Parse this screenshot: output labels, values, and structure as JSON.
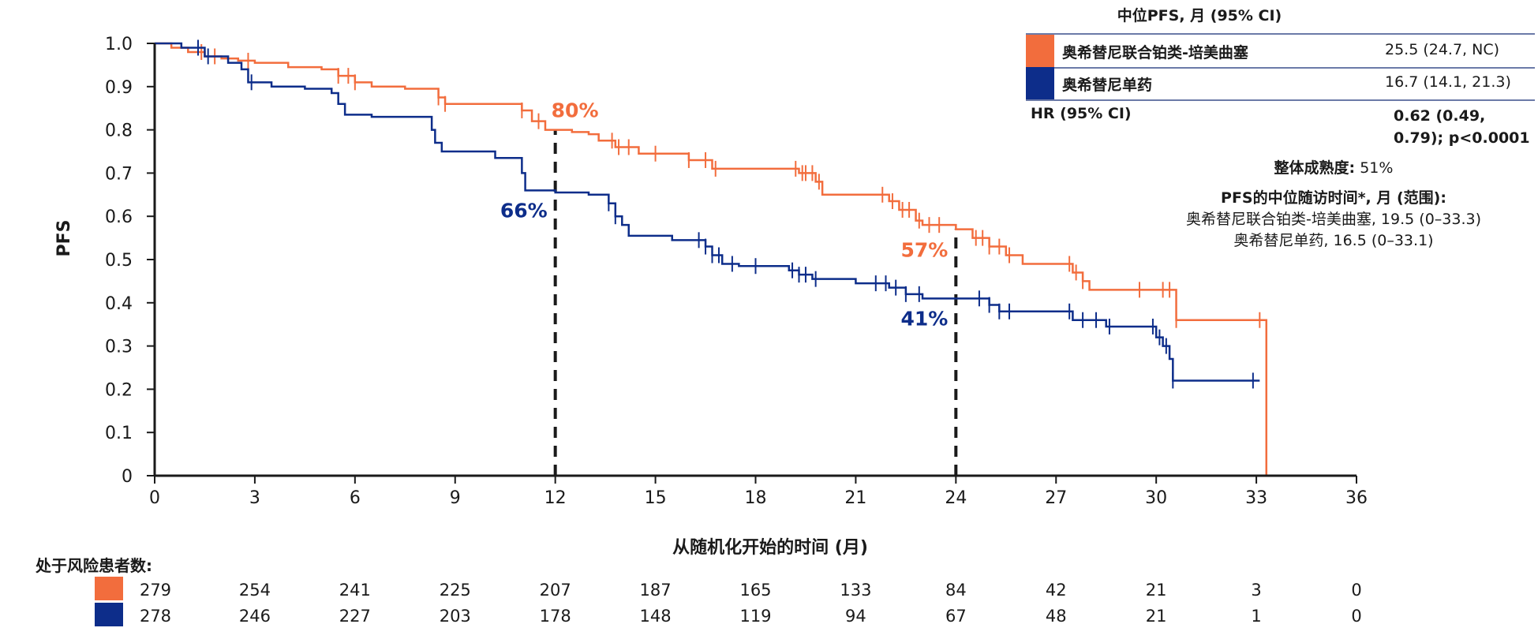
{
  "chart_data": {
    "type": "line",
    "xlabel": "从随机化开始的时间 (月)",
    "ylabel": "PFS",
    "xlim": [
      0,
      36
    ],
    "ylim": [
      0,
      1.0
    ],
    "xticks": [
      0,
      3,
      6,
      9,
      12,
      15,
      18,
      21,
      24,
      27,
      30,
      33,
      36
    ],
    "yticks": [
      0,
      0.1,
      0.2,
      0.3,
      0.4,
      0.5,
      0.6,
      0.7,
      0.8,
      0.9,
      1.0
    ],
    "ytick_labels": [
      "0",
      "0.1",
      "0.2",
      "0.3",
      "0.4",
      "0.5",
      "0.6",
      "0.7",
      "0.8",
      "0.9",
      "1.0"
    ],
    "reference_lines_x": [
      12,
      24
    ],
    "series": [
      {
        "name": "奥希替尼联合铂类-培美曲塞",
        "color": "#f26d3d",
        "steps": [
          [
            0,
            1.0
          ],
          [
            0.5,
            0.99
          ],
          [
            1.0,
            0.98
          ],
          [
            1.5,
            0.97
          ],
          [
            2.0,
            0.965
          ],
          [
            2.5,
            0.96
          ],
          [
            3.0,
            0.955
          ],
          [
            4.0,
            0.945
          ],
          [
            5.0,
            0.94
          ],
          [
            5.5,
            0.925
          ],
          [
            6.0,
            0.91
          ],
          [
            6.5,
            0.9
          ],
          [
            7.5,
            0.895
          ],
          [
            8.5,
            0.875
          ],
          [
            8.7,
            0.86
          ],
          [
            11.0,
            0.845
          ],
          [
            11.3,
            0.82
          ],
          [
            11.7,
            0.8
          ],
          [
            12.5,
            0.795
          ],
          [
            13.0,
            0.79
          ],
          [
            13.3,
            0.775
          ],
          [
            13.8,
            0.76
          ],
          [
            14.5,
            0.745
          ],
          [
            16.0,
            0.73
          ],
          [
            16.7,
            0.71
          ],
          [
            19.3,
            0.7
          ],
          [
            19.8,
            0.68
          ],
          [
            20.0,
            0.65
          ],
          [
            22.0,
            0.635
          ],
          [
            22.3,
            0.615
          ],
          [
            22.8,
            0.59
          ],
          [
            23.0,
            0.58
          ],
          [
            24.0,
            0.57
          ],
          [
            24.5,
            0.55
          ],
          [
            25.0,
            0.53
          ],
          [
            25.5,
            0.51
          ],
          [
            26.0,
            0.49
          ],
          [
            27.5,
            0.47
          ],
          [
            27.8,
            0.45
          ],
          [
            28.0,
            0.43
          ],
          [
            30.6,
            0.36
          ],
          [
            33.3,
            0.0
          ]
        ],
        "end": 33.3,
        "censors": [
          1.4,
          1.8,
          2.8,
          5.5,
          5.8,
          6.0,
          8.5,
          8.7,
          11.0,
          11.5,
          13.7,
          13.9,
          14.2,
          15.0,
          16.0,
          16.5,
          16.8,
          19.2,
          19.4,
          19.5,
          19.7,
          19.9,
          21.8,
          22.1,
          22.4,
          22.6,
          22.9,
          23.2,
          23.5,
          24.6,
          24.8,
          25.0,
          25.3,
          25.6,
          27.4,
          27.6,
          27.8,
          29.5,
          30.2,
          30.4,
          30.6,
          33.1
        ],
        "annotations": [
          {
            "x": 12,
            "y": 0.8,
            "label": "80%"
          },
          {
            "x": 24,
            "y": 0.57,
            "label": "57%"
          }
        ]
      },
      {
        "name": "奥希替尼单药",
        "color": "#0d2d8a",
        "steps": [
          [
            0,
            1.0
          ],
          [
            0.8,
            0.99
          ],
          [
            1.5,
            0.97
          ],
          [
            2.2,
            0.955
          ],
          [
            2.6,
            0.94
          ],
          [
            2.8,
            0.91
          ],
          [
            3.5,
            0.9
          ],
          [
            4.5,
            0.895
          ],
          [
            5.3,
            0.885
          ],
          [
            5.5,
            0.86
          ],
          [
            5.7,
            0.835
          ],
          [
            6.5,
            0.83
          ],
          [
            8.3,
            0.8
          ],
          [
            8.4,
            0.77
          ],
          [
            8.6,
            0.75
          ],
          [
            10.2,
            0.735
          ],
          [
            11.0,
            0.7
          ],
          [
            11.1,
            0.66
          ],
          [
            12.0,
            0.655
          ],
          [
            13.0,
            0.65
          ],
          [
            13.6,
            0.63
          ],
          [
            13.8,
            0.6
          ],
          [
            14.0,
            0.58
          ],
          [
            14.2,
            0.555
          ],
          [
            15.5,
            0.545
          ],
          [
            16.5,
            0.53
          ],
          [
            16.7,
            0.51
          ],
          [
            17.0,
            0.49
          ],
          [
            17.5,
            0.485
          ],
          [
            19.0,
            0.475
          ],
          [
            19.3,
            0.465
          ],
          [
            19.7,
            0.455
          ],
          [
            21.0,
            0.445
          ],
          [
            22.0,
            0.435
          ],
          [
            22.5,
            0.42
          ],
          [
            23.0,
            0.41
          ],
          [
            25.0,
            0.395
          ],
          [
            25.3,
            0.38
          ],
          [
            27.5,
            0.36
          ],
          [
            28.5,
            0.345
          ],
          [
            30.0,
            0.32
          ],
          [
            30.2,
            0.3
          ],
          [
            30.4,
            0.27
          ],
          [
            30.5,
            0.22
          ],
          [
            33.1,
            0.22
          ]
        ],
        "end": 33.1,
        "censors": [
          1.3,
          1.6,
          2.9,
          13.6,
          13.8,
          16.3,
          16.5,
          16.7,
          16.9,
          17.3,
          18.0,
          19.1,
          19.3,
          19.5,
          19.8,
          21.6,
          21.9,
          22.2,
          22.5,
          22.9,
          24.7,
          25.0,
          25.3,
          25.6,
          27.4,
          27.8,
          28.2,
          28.6,
          29.9,
          30.1,
          30.3,
          30.5,
          32.9
        ],
        "annotations": [
          {
            "x": 12,
            "y": 0.66,
            "label": "66%"
          },
          {
            "x": 24,
            "y": 0.41,
            "label": "41%"
          }
        ]
      }
    ],
    "risk_table": {
      "title": "处于风险患者数:",
      "times": [
        0,
        3,
        6,
        9,
        12,
        15,
        18,
        21,
        24,
        27,
        30,
        33,
        36
      ],
      "rows": [
        {
          "series": "奥希替尼联合铂类-培美曲塞",
          "counts": [
            "279",
            "254",
            "241",
            "225",
            "207",
            "187",
            "165",
            "133",
            "84",
            "42",
            "21",
            "3",
            "0"
          ]
        },
        {
          "series": "奥希替尼单药",
          "counts": [
            "278",
            "246",
            "227",
            "203",
            "178",
            "148",
            "119",
            "94",
            "67",
            "48",
            "21",
            "1",
            "0"
          ]
        }
      ]
    },
    "legend": {
      "position": "top-right",
      "header": "中位PFS, 月 (95% CI)",
      "rows": [
        {
          "name": "奥希替尼联合铂类-培美曲塞",
          "value": "25.5 (24.7, NC)",
          "color": "#f26d3d"
        },
        {
          "name": "奥希替尼单药",
          "value": "16.7 (14.1, 21.3)",
          "color": "#0d2d8a"
        }
      ],
      "hr_label": "HR (95% CI)",
      "hr_value": "0.62 (0.49, 0.79); p<0.0001",
      "maturity_label": "整体成熟度:",
      "maturity_value": "51%",
      "followup_title": "PFS的中位随访时间*, 月 (范围):",
      "followup_combo": "奥希替尼联合铂类-培美曲塞, 19.5 (0–33.3)",
      "followup_mono": "奥希替尼单药, 16.5 (0–33.1)"
    }
  }
}
